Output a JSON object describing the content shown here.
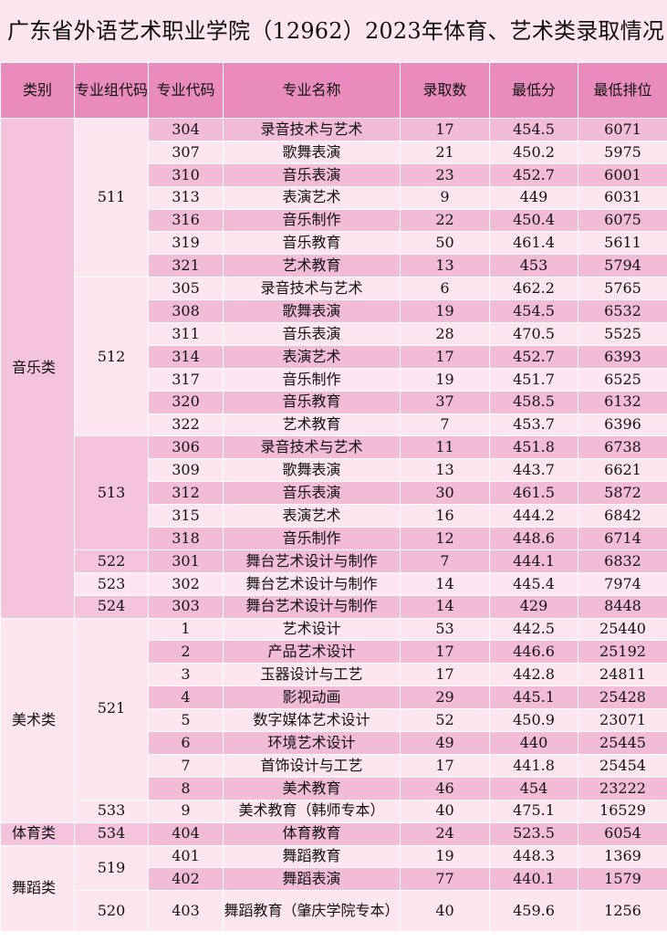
{
  "title": "广东省外语艺术职业学院（12962）2023年体育、艺术类录取情况",
  "headers": {
    "category": "类别",
    "group_code": "专业组代码",
    "major_code": "专业代码",
    "major_name": "专业名称",
    "admitted": "录取数",
    "min_score": "最低分",
    "min_rank": "最低排位"
  },
  "categories": {
    "music": "音乐类",
    "art": "美术类",
    "sports": "体育类",
    "dance": "舞蹈类"
  },
  "groups": {
    "g511": "511",
    "g512": "512",
    "g513": "513",
    "g522": "522",
    "g523": "523",
    "g524": "524",
    "g521": "521",
    "g533": "533",
    "g534": "534",
    "g519": "519",
    "g520": "520"
  },
  "rows": [
    {
      "code": "304",
      "name": "录音技术与艺术",
      "count": "17",
      "min": "454.5",
      "rank": "6071"
    },
    {
      "code": "307",
      "name": "歌舞表演",
      "count": "21",
      "min": "450.2",
      "rank": "5975"
    },
    {
      "code": "310",
      "name": "音乐表演",
      "count": "23",
      "min": "452.7",
      "rank": "6001"
    },
    {
      "code": "313",
      "name": "表演艺术",
      "count": "9",
      "min": "449",
      "rank": "6031"
    },
    {
      "code": "316",
      "name": "音乐制作",
      "count": "22",
      "min": "450.4",
      "rank": "6075"
    },
    {
      "code": "319",
      "name": "音乐教育",
      "count": "50",
      "min": "461.4",
      "rank": "5611"
    },
    {
      "code": "321",
      "name": "艺术教育",
      "count": "13",
      "min": "453",
      "rank": "5794"
    },
    {
      "code": "305",
      "name": "录音技术与艺术",
      "count": "6",
      "min": "462.2",
      "rank": "5765"
    },
    {
      "code": "308",
      "name": "歌舞表演",
      "count": "19",
      "min": "454.5",
      "rank": "6532"
    },
    {
      "code": "311",
      "name": "音乐表演",
      "count": "28",
      "min": "470.5",
      "rank": "5525"
    },
    {
      "code": "314",
      "name": "表演艺术",
      "count": "17",
      "min": "452.7",
      "rank": "6393"
    },
    {
      "code": "317",
      "name": "音乐制作",
      "count": "19",
      "min": "451.7",
      "rank": "6525"
    },
    {
      "code": "320",
      "name": "音乐教育",
      "count": "37",
      "min": "458.5",
      "rank": "6132"
    },
    {
      "code": "322",
      "name": "艺术教育",
      "count": "7",
      "min": "453.7",
      "rank": "6396"
    },
    {
      "code": "306",
      "name": "录音技术与艺术",
      "count": "11",
      "min": "451.8",
      "rank": "6738"
    },
    {
      "code": "309",
      "name": "歌舞表演",
      "count": "13",
      "min": "443.7",
      "rank": "6621"
    },
    {
      "code": "312",
      "name": "音乐表演",
      "count": "30",
      "min": "461.5",
      "rank": "5872"
    },
    {
      "code": "315",
      "name": "表演艺术",
      "count": "16",
      "min": "444.2",
      "rank": "6842"
    },
    {
      "code": "318",
      "name": "音乐制作",
      "count": "12",
      "min": "448.6",
      "rank": "6714"
    },
    {
      "code": "301",
      "name": "舞台艺术设计与制作",
      "count": "7",
      "min": "444.1",
      "rank": "6832"
    },
    {
      "code": "302",
      "name": "舞台艺术设计与制作",
      "count": "14",
      "min": "445.4",
      "rank": "7974"
    },
    {
      "code": "303",
      "name": "舞台艺术设计与制作",
      "count": "14",
      "min": "429",
      "rank": "8448"
    },
    {
      "code": "1",
      "name": "艺术设计",
      "count": "53",
      "min": "442.5",
      "rank": "25440"
    },
    {
      "code": "2",
      "name": "产品艺术设计",
      "count": "17",
      "min": "446.6",
      "rank": "25192"
    },
    {
      "code": "3",
      "name": "玉器设计与工艺",
      "count": "17",
      "min": "442.8",
      "rank": "24811"
    },
    {
      "code": "4",
      "name": "影视动画",
      "count": "29",
      "min": "445.1",
      "rank": "25428"
    },
    {
      "code": "5",
      "name": "数字媒体艺术设计",
      "count": "52",
      "min": "450.9",
      "rank": "23071"
    },
    {
      "code": "6",
      "name": "环境艺术设计",
      "count": "49",
      "min": "440",
      "rank": "25445"
    },
    {
      "code": "7",
      "name": "首饰设计与工艺",
      "count": "17",
      "min": "441.8",
      "rank": "25454"
    },
    {
      "code": "8",
      "name": "美术教育",
      "count": "46",
      "min": "454",
      "rank": "23222"
    },
    {
      "code": "9",
      "name": "美术教育（韩师专本）",
      "count": "40",
      "min": "475.1",
      "rank": "16529"
    },
    {
      "code": "404",
      "name": "体育教育",
      "count": "24",
      "min": "523.5",
      "rank": "6054"
    },
    {
      "code": "401",
      "name": "舞蹈教育",
      "count": "19",
      "min": "448.3",
      "rank": "1369"
    },
    {
      "code": "402",
      "name": "舞蹈表演",
      "count": "77",
      "min": "440.1",
      "rank": "1579"
    },
    {
      "code": "403",
      "name": "舞蹈教育（肇庆学院专本）",
      "count": "40",
      "min": "459.6",
      "rank": "1256"
    }
  ]
}
